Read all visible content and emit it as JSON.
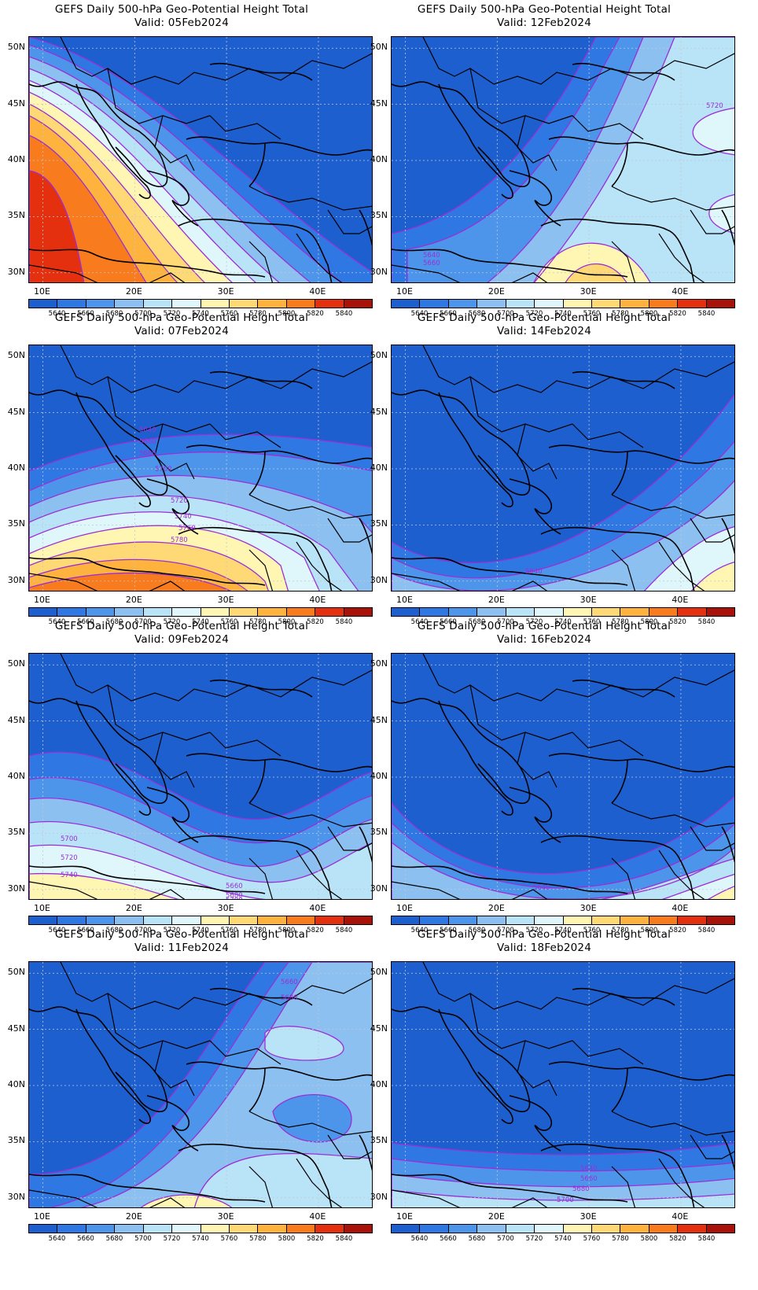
{
  "figure": {
    "panel_title": "GEFS Daily 500-hPa Geo-Potential Height Total",
    "valid_prefix": "Valid:",
    "lat_ticks": [
      "50N",
      "45N",
      "40N",
      "35N",
      "30N"
    ],
    "lon_ticks": [
      "10E",
      "20E",
      "30E",
      "40E"
    ],
    "colorbar": {
      "labels": [
        "5640",
        "5660",
        "5680",
        "5700",
        "5720",
        "5740",
        "5760",
        "5780",
        "5800",
        "5820",
        "5840"
      ],
      "colors": [
        "#1e5fd0",
        "#2f78e4",
        "#4c95ea",
        "#8cc0f0",
        "#b9e3f7",
        "#dff6fb",
        "#fff6b3",
        "#ffd976",
        "#fdb33d",
        "#f87b1e",
        "#e4300f",
        "#a81208"
      ]
    }
  },
  "panels": [
    {
      "valid": "05Feb2024",
      "labels": []
    },
    {
      "valid": "12Feb2024",
      "labels": [
        "5720",
        "5640",
        "5660"
      ]
    },
    {
      "valid": "07Feb2024",
      "labels": [
        "5640",
        "5660",
        "5680",
        "5700",
        "5720",
        "5740",
        "5760",
        "5780"
      ]
    },
    {
      "valid": "14Feb2024",
      "labels": [
        "5640"
      ]
    },
    {
      "valid": "09Feb2024",
      "labels": [
        "5700",
        "5720",
        "5740",
        "5660",
        "5680",
        "5700"
      ]
    },
    {
      "valid": "16Feb2024",
      "labels": [
        "5640"
      ]
    },
    {
      "valid": "11Feb2024",
      "labels": [
        "5660",
        "5680"
      ]
    },
    {
      "valid": "18Feb2024",
      "labels": [
        "5640",
        "5660",
        "5680",
        "5700"
      ]
    }
  ]
}
